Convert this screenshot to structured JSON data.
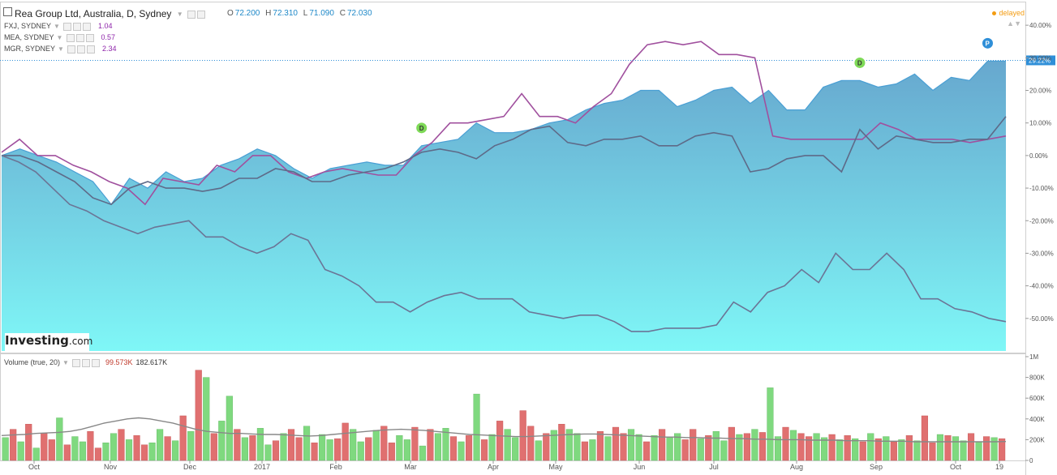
{
  "header": {
    "title": "Rea Group Ltd, Australia, D, Sydney",
    "ohlc": [
      {
        "key": "O",
        "value": "72.200"
      },
      {
        "key": "H",
        "value": "72.310"
      },
      {
        "key": "L",
        "value": "71.090"
      },
      {
        "key": "C",
        "value": "72.030"
      }
    ],
    "status": "delayed"
  },
  "compare": [
    {
      "symbol": "FXJ, SYDNEY",
      "value": "1.04",
      "color": "#8e24aa"
    },
    {
      "symbol": "MEA, SYDNEY",
      "value": "0.57",
      "color": "#8e24aa"
    },
    {
      "symbol": "MGR, SYDNEY",
      "value": "2.34",
      "color": "#8e24aa"
    }
  ],
  "volume_panel": {
    "label": "Volume (true, 20)",
    "value1": "99.573K",
    "value2": "182.617K"
  },
  "logo": {
    "brand": "Investing",
    "suffix": ".com"
  },
  "colors": {
    "area_top": "#5fa3cc",
    "area_bottom": "#7ff7f7",
    "area_line": "#4a9fd4",
    "fxj": "#a0509e",
    "mea": "#5e6a88",
    "mgr": "#6b7596",
    "vol_up": "#7fd97f",
    "vol_down": "#e07070",
    "vol_ma": "#888888"
  },
  "chart_data": {
    "type": "line",
    "x_ticks": [
      "Oct",
      "Nov",
      "Dec",
      "2017",
      "Feb",
      "Mar",
      "Apr",
      "May",
      "Jun",
      "Jul",
      "Aug",
      "Sep",
      "Oct",
      "19"
    ],
    "y_ticks": [
      "40.00%",
      "30.00%",
      "20.00%",
      "10.00%",
      "0.00%",
      "-10.00%",
      "-20.00%",
      "-30.00%",
      "-40.00%",
      "-50.00%"
    ],
    "ylim": [
      -60,
      47
    ],
    "current_value_label": "29.22%",
    "current_value": 29.22,
    "series": [
      {
        "name": "Rea Group Ltd",
        "style": "area",
        "values": [
          0,
          2,
          0,
          -2,
          -5,
          -8,
          -15,
          -7,
          -10,
          -5,
          -8,
          -7,
          -3,
          -1,
          2,
          0,
          -4,
          -7,
          -4,
          -3,
          -2,
          -3,
          -3,
          3,
          4,
          5,
          10,
          7,
          7,
          8,
          10,
          11,
          14,
          16,
          17,
          20,
          20,
          15,
          17,
          20,
          21,
          16,
          20,
          14,
          14,
          21,
          23,
          23,
          21,
          22,
          25,
          20,
          24,
          23,
          29,
          29
        ]
      },
      {
        "name": "FXJ, SYDNEY",
        "style": "line",
        "values": [
          1,
          5,
          0,
          0,
          -3,
          -5,
          -8,
          -10,
          -15,
          -7,
          -8,
          -9,
          -3,
          -5,
          0,
          0,
          -5,
          -7,
          -5,
          -4,
          -5,
          -6,
          -6,
          0,
          4,
          10,
          10,
          11,
          12,
          19,
          12,
          12,
          10,
          15,
          19,
          28,
          34,
          35,
          34,
          35,
          31,
          31,
          30,
          6,
          5,
          5,
          5,
          5,
          5,
          10,
          8,
          5,
          5,
          5,
          4,
          5,
          6
        ]
      },
      {
        "name": "MEA, SYDNEY",
        "style": "line",
        "values": [
          0,
          0,
          -2,
          -5,
          -8,
          -13,
          -15,
          -10,
          -8,
          -10,
          -10,
          -11,
          -10,
          -7,
          -7,
          -4,
          -5,
          -8,
          -8,
          -6,
          -5,
          -4,
          -2,
          1,
          2,
          1,
          -1,
          3,
          5,
          8,
          9,
          4,
          3,
          5,
          5,
          6,
          3,
          3,
          6,
          7,
          6,
          -5,
          -4,
          -1,
          0,
          0,
          -5,
          8,
          2,
          6,
          5,
          4,
          4,
          5,
          5,
          12
        ]
      },
      {
        "name": "MGR, SYDNEY",
        "style": "line",
        "values": [
          0,
          -2,
          -5,
          -10,
          -15,
          -17,
          -20,
          -22,
          -24,
          -22,
          -21,
          -20,
          -25,
          -25,
          -28,
          -30,
          -28,
          -24,
          -26,
          -35,
          -37,
          -40,
          -45,
          -45,
          -48,
          -45,
          -43,
          -42,
          -44,
          -44,
          -44,
          -48,
          -49,
          -50,
          -49,
          -49,
          -51,
          -54,
          -54,
          -53,
          -53,
          -53,
          -52,
          -45,
          -48,
          -42,
          -40,
          -35,
          -39,
          -30,
          -35,
          -35,
          -30,
          -35,
          -44,
          -44,
          -47,
          -48,
          -50,
          -51
        ]
      }
    ],
    "markers": [
      {
        "label": "D",
        "series": "Rea Group Ltd",
        "index": 23,
        "color": "#7ed957"
      },
      {
        "label": "D",
        "series": "Rea Group Ltd",
        "index": 47,
        "color": "#7ed957"
      },
      {
        "label": "P",
        "series": "Rea Group Ltd",
        "index": 54,
        "color": "#2f8fd8"
      }
    ],
    "volume": {
      "y_ticks": [
        "1M",
        "800K",
        "600K",
        "400K",
        "200K",
        "0"
      ],
      "ylim": [
        0,
        1000
      ],
      "values": [
        220,
        300,
        180,
        350,
        120,
        260,
        200,
        410,
        150,
        230,
        180,
        280,
        120,
        170,
        260,
        300,
        200,
        240,
        150,
        170,
        300,
        230,
        190,
        430,
        280,
        870,
        800,
        260,
        380,
        620,
        300,
        220,
        240,
        310,
        150,
        190,
        260,
        300,
        220,
        330,
        170,
        250,
        200,
        210,
        360,
        300,
        180,
        220,
        290,
        330,
        170,
        240,
        200,
        320,
        140,
        300,
        260,
        310,
        230,
        180,
        240,
        640,
        200,
        250,
        380,
        300,
        220,
        480,
        330,
        190,
        260,
        290,
        350,
        300,
        260,
        180,
        200,
        280,
        230,
        320,
        260,
        300,
        250,
        180,
        240,
        300,
        220,
        260,
        200,
        300,
        210,
        240,
        280,
        190,
        320,
        250,
        260,
        300,
        270,
        700,
        230,
        320,
        290,
        260,
        230,
        260,
        220,
        250,
        200,
        240,
        210,
        180,
        260,
        210,
        230,
        180,
        200,
        240,
        190,
        430,
        170,
        250,
        240,
        230,
        190,
        260,
        180,
        230,
        220,
        210
      ],
      "up": [
        1,
        0,
        1,
        0,
        1,
        0,
        0,
        1,
        0,
        1,
        1,
        0,
        0,
        1,
        1,
        0,
        1,
        0,
        0,
        1,
        1,
        0,
        1,
        0,
        1,
        0,
        1,
        0,
        1,
        1,
        0,
        1,
        0,
        1,
        1,
        0,
        1,
        0,
        0,
        1,
        0,
        1,
        1,
        0,
        0,
        1,
        1,
        0,
        1,
        0,
        0,
        1,
        1,
        0,
        1,
        0,
        1,
        1,
        0,
        1,
        0,
        1,
        0,
        1,
        0,
        1,
        1,
        0,
        0,
        1,
        0,
        1,
        0,
        1,
        1,
        0,
        1,
        0,
        1,
        0,
        0,
        1,
        1,
        0,
        1,
        0,
        1,
        1,
        0,
        0,
        1,
        0,
        1,
        1,
        0,
        1,
        0,
        1,
        0,
        1,
        1,
        0,
        1,
        0,
        0,
        1,
        1,
        0,
        1,
        0,
        1,
        0,
        1,
        0,
        1,
        0,
        1,
        0,
        1,
        0,
        0,
        1,
        0,
        1,
        1,
        0,
        1,
        0,
        1,
        0
      ],
      "ma": [
        240,
        245,
        250,
        260,
        265,
        270,
        280,
        300,
        330,
        360,
        380,
        400,
        410,
        400,
        380,
        360,
        330,
        300,
        280,
        270,
        260,
        260,
        255,
        250,
        250,
        245,
        240,
        235,
        240,
        250,
        260,
        270,
        280,
        290,
        295,
        300,
        295,
        290,
        280,
        270,
        260,
        250,
        245,
        240,
        235,
        230,
        230,
        235,
        240,
        245,
        250,
        255,
        255,
        250,
        245,
        240,
        235,
        230,
        225,
        225,
        220,
        220,
        215,
        215,
        210,
        210,
        205,
        205,
        200,
        200,
        200,
        195,
        195,
        195,
        190,
        190,
        190,
        185,
        185,
        185,
        180,
        180,
        180,
        180,
        180,
        180,
        180,
        180,
        182
      ]
    }
  }
}
